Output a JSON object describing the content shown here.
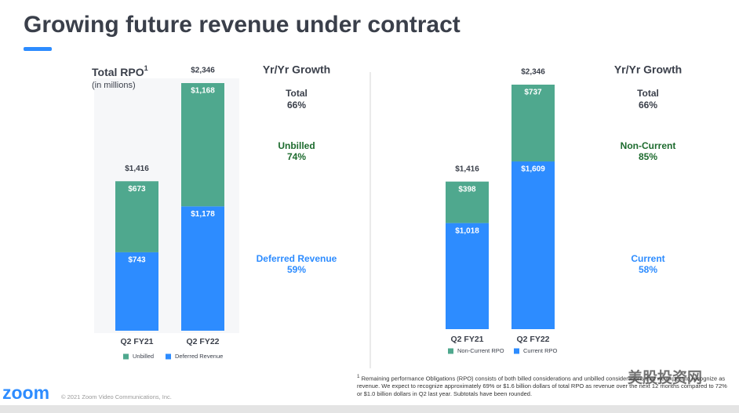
{
  "title": "Growing future revenue under contract",
  "footnote_mark": "1",
  "footnote": "Remaining performance Obligations (RPO) consists of both billed considerations and unbilled considerations that we expect to recognize as revenue. We expect to recognize approximately 69% or $1.6 billion dollars of total RPO as revenue over the next 12 months compared to 72% or $1.0 billion dollars in Q2 last year. Subtotals have been rounded.",
  "logo": "zoom",
  "copyright": "© 2021 Zoom Video Communications, Inc.",
  "watermark": "美股投资网",
  "chart_data": [
    {
      "type": "stacked_bar",
      "title": "Total RPO",
      "title_note": "1",
      "subtitle": "(in millions)",
      "categories": [
        "Q2 FY21",
        "Q2 FY22"
      ],
      "totals": [
        1416,
        2346
      ],
      "total_labels": [
        "$1,416",
        "$2,346"
      ],
      "series": [
        {
          "name": "Unbilled",
          "color": "#4fa88e",
          "values": [
            673,
            1168
          ],
          "value_labels": [
            "$673",
            "$1,168"
          ]
        },
        {
          "name": "Deferred Revenue",
          "color": "#2d8cff",
          "values": [
            743,
            1178
          ],
          "value_labels": [
            "$743",
            "$1,178"
          ]
        }
      ],
      "growth_title": "Yr/Yr Growth",
      "growth": [
        {
          "label": "Total",
          "value": "66%",
          "color": "#3a3f4a"
        },
        {
          "label": "Unbilled",
          "value": "74%",
          "color": "#1d6b2e"
        },
        {
          "label": "Deferred Revenue",
          "value": "59%",
          "color": "#2d8cff"
        }
      ]
    },
    {
      "type": "stacked_bar",
      "categories": [
        "Q2 FY21",
        "Q2 FY22"
      ],
      "totals": [
        1416,
        2346
      ],
      "total_labels": [
        "$1,416",
        "$2,346"
      ],
      "series": [
        {
          "name": "Non-Current RPO",
          "color": "#4fa88e",
          "values": [
            398,
            737
          ],
          "value_labels": [
            "$398",
            "$737"
          ]
        },
        {
          "name": "Current RPO",
          "color": "#2d8cff",
          "values": [
            1018,
            1609
          ],
          "value_labels": [
            "$1,018",
            "$1,609"
          ]
        }
      ],
      "growth_title": "Yr/Yr Growth",
      "growth": [
        {
          "label": "Total",
          "value": "66%",
          "color": "#3a3f4a"
        },
        {
          "label": "Non-Current",
          "value": "85%",
          "color": "#1d6b2e"
        },
        {
          "label": "Current",
          "value": "58%",
          "color": "#2d8cff"
        }
      ]
    }
  ]
}
